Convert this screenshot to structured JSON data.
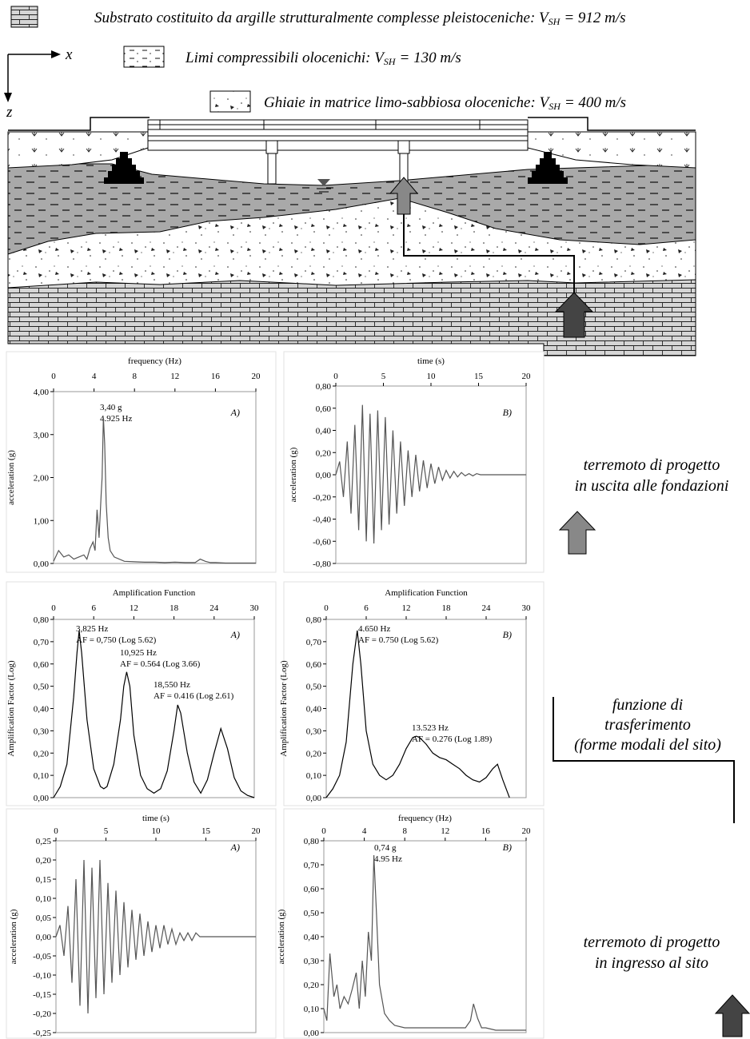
{
  "diagram": {
    "axes": {
      "x": "x",
      "z": "z"
    },
    "legend": [
      {
        "text": "Substrato costituito da argille strutturalmente complesse pleistoceniche:",
        "symbol": "V",
        "subscript": "SH",
        "value": "= 912 m/s"
      },
      {
        "text": "Limi compressibili olocenichi:",
        "symbol": "V",
        "subscript": "SH",
        "value": "= 130 m/s"
      },
      {
        "text": "Ghiaie in matrice limo-sabbiosa oloceniche:",
        "symbol": "V",
        "subscript": "SH",
        "value": "= 400 m/s"
      }
    ]
  },
  "captions": [
    {
      "lines": [
        "terremoto di progetto",
        "in uscita alle fondazioni"
      ]
    },
    {
      "lines": [
        "funzione di",
        "trasferimento",
        "(forme modali del sito)"
      ]
    },
    {
      "lines": [
        "terremoto di progetto",
        "in ingresso al sito"
      ]
    }
  ],
  "chart_data": [
    {
      "type": "line",
      "xlabel": "frequency (Hz)",
      "ylabel": "acceleration (g)",
      "panel": "A)",
      "color": "#555555",
      "annotations": [
        {
          "lines": [
            "3,40 g",
            "4.925 Hz"
          ]
        }
      ],
      "xlim": [
        0,
        20
      ],
      "xticks": [
        0,
        4,
        8,
        12,
        16,
        20
      ],
      "ylim": [
        0,
        4
      ],
      "yticks": [
        {
          "value": 0,
          "label": "0,00"
        },
        {
          "value": 1,
          "label": "1,00"
        },
        {
          "value": 2,
          "label": "2,00"
        },
        {
          "value": 3,
          "label": "3,00"
        },
        {
          "value": 4,
          "label": "4,00"
        }
      ],
      "x": [
        0,
        0.5,
        1,
        1.5,
        2,
        2.5,
        3,
        3.3,
        3.6,
        3.9,
        4.1,
        4.3,
        4.5,
        4.7,
        4.8,
        4.925,
        5.05,
        5.2,
        5.4,
        5.6,
        6,
        7,
        8,
        9,
        10,
        11,
        12,
        13,
        14,
        14.5,
        15,
        15.5,
        16,
        17,
        18,
        19,
        20
      ],
      "values": [
        0.05,
        0.3,
        0.15,
        0.2,
        0.1,
        0.15,
        0.2,
        0.1,
        0.35,
        0.5,
        0.3,
        1.25,
        0.6,
        1.6,
        2.0,
        3.4,
        2.8,
        1.4,
        0.6,
        0.3,
        0.15,
        0.05,
        0.04,
        0.03,
        0.03,
        0.02,
        0.03,
        0.02,
        0.02,
        0.1,
        0.05,
        0.02,
        0.02,
        0.01,
        0.01,
        0.01,
        0.01
      ]
    },
    {
      "type": "line",
      "xlabel": "time (s)",
      "ylabel": "acceleration (g)",
      "panel": "B)",
      "color": "#555555",
      "annotations": [],
      "xlim": [
        0,
        20
      ],
      "xticks": [
        0,
        5,
        10,
        15,
        20
      ],
      "ylim": [
        -0.8,
        0.8
      ],
      "yticks": [
        {
          "value": -0.8,
          "label": "-0,80"
        },
        {
          "value": -0.6,
          "label": "-0,60"
        },
        {
          "value": -0.4,
          "label": "-0,40"
        },
        {
          "value": -0.2,
          "label": "-0,20"
        },
        {
          "value": 0,
          "label": "0,00"
        },
        {
          "value": 0.2,
          "label": "0,20"
        },
        {
          "value": 0.4,
          "label": "0,40"
        },
        {
          "value": 0.6,
          "label": "0,60"
        },
        {
          "value": 0.8,
          "label": "0,80"
        }
      ],
      "x": [
        0,
        0.4,
        0.8,
        1.2,
        1.6,
        2,
        2.4,
        2.8,
        3.2,
        3.6,
        4,
        4.4,
        4.8,
        5.2,
        5.6,
        6,
        6.4,
        6.8,
        7.2,
        7.6,
        8,
        8.4,
        8.8,
        9.2,
        9.6,
        10,
        10.4,
        10.8,
        11.2,
        11.6,
        12,
        12.4,
        12.8,
        13.2,
        13.6,
        14,
        14.4,
        14.8,
        15.2,
        15.6,
        16,
        16.4,
        16.8,
        17.2,
        17.6,
        18,
        18.4,
        18.8,
        19.2,
        19.6,
        20
      ],
      "values": [
        0,
        0.12,
        -0.2,
        0.3,
        -0.35,
        0.45,
        -0.5,
        0.63,
        -0.6,
        0.55,
        -0.62,
        0.58,
        -0.5,
        0.52,
        -0.45,
        0.4,
        -0.35,
        0.3,
        -0.28,
        0.22,
        -0.2,
        0.18,
        -0.15,
        0.13,
        -0.12,
        0.1,
        -0.08,
        0.07,
        -0.05,
        0.04,
        -0.03,
        0.03,
        -0.02,
        0.02,
        -0.01,
        0.01,
        -0.01,
        0.01,
        0,
        0,
        0,
        0,
        0,
        0,
        0,
        0,
        0,
        0,
        0,
        0,
        0
      ]
    },
    {
      "type": "line",
      "xlabel": "Amplification Function",
      "ylabel": "Amplification Factor (Log)",
      "panel": "A)",
      "color": "#000000",
      "annotations": [
        {
          "lines": [
            "3,825 Hz",
            "AF = 0,750 (Log 5.62)"
          ]
        },
        {
          "lines": [
            "10,925 Hz",
            "AF = 0.564 (Log 3.66)"
          ]
        },
        {
          "lines": [
            "18,550 Hz",
            "AF = 0.416 (Log 2.61)"
          ]
        }
      ],
      "xlim": [
        0,
        30
      ],
      "xticks": [
        0,
        6,
        12,
        18,
        24,
        30
      ],
      "ylim": [
        0,
        0.8
      ],
      "yticks": [
        {
          "value": 0,
          "label": "0,00"
        },
        {
          "value": 0.1,
          "label": "0,10"
        },
        {
          "value": 0.2,
          "label": "0,20"
        },
        {
          "value": 0.3,
          "label": "0,30"
        },
        {
          "value": 0.4,
          "label": "0,40"
        },
        {
          "value": 0.5,
          "label": "0,50"
        },
        {
          "value": 0.6,
          "label": "0,60"
        },
        {
          "value": 0.7,
          "label": "0,70"
        },
        {
          "value": 0.8,
          "label": "0,80"
        }
      ],
      "x": [
        0,
        1,
        2,
        3,
        3.5,
        3.825,
        4.2,
        5,
        6,
        7,
        7.5,
        8,
        9,
        10,
        10.5,
        10.925,
        11.4,
        12,
        13,
        14,
        15,
        16,
        17,
        18,
        18.55,
        19,
        20,
        21,
        22,
        23,
        24,
        25,
        26,
        27,
        28,
        29,
        30
      ],
      "values": [
        0,
        0.05,
        0.15,
        0.45,
        0.65,
        0.75,
        0.65,
        0.35,
        0.13,
        0.05,
        0.04,
        0.05,
        0.15,
        0.35,
        0.5,
        0.564,
        0.5,
        0.28,
        0.1,
        0.04,
        0.02,
        0.04,
        0.12,
        0.3,
        0.416,
        0.38,
        0.2,
        0.07,
        0.02,
        0.08,
        0.2,
        0.31,
        0.22,
        0.09,
        0.03,
        0.01,
        0
      ]
    },
    {
      "type": "line",
      "xlabel": "Amplification Function",
      "ylabel": "Amplification Factor (Log)",
      "panel": "B)",
      "color": "#000000",
      "annotations": [
        {
          "lines": [
            "4.650 Hz",
            "AF = 0.750 (Log 5.62)"
          ]
        },
        {
          "lines": [
            "13.523 Hz",
            "AF = 0.276 (Log 1.89)"
          ]
        }
      ],
      "xlim": [
        0,
        30
      ],
      "xticks": [
        0,
        6,
        12,
        18,
        24,
        30
      ],
      "ylim": [
        0,
        0.8
      ],
      "yticks": [
        {
          "value": 0,
          "label": "0,00"
        },
        {
          "value": 0.1,
          "label": "0,10"
        },
        {
          "value": 0.2,
          "label": "0,20"
        },
        {
          "value": 0.3,
          "label": "0,30"
        },
        {
          "value": 0.4,
          "label": "0,40"
        },
        {
          "value": 0.5,
          "label": "0,50"
        },
        {
          "value": 0.6,
          "label": "0,60"
        },
        {
          "value": 0.7,
          "label": "0,70"
        },
        {
          "value": 0.8,
          "label": "0,80"
        }
      ],
      "x": [
        0,
        1,
        2,
        3,
        4,
        4.65,
        5.2,
        6,
        7,
        8,
        9,
        10,
        11,
        12,
        13,
        13.523,
        14,
        15,
        16,
        17,
        18,
        19,
        20,
        21,
        22,
        23,
        24,
        25,
        25.7,
        26.5,
        27.5
      ],
      "values": [
        0,
        0.04,
        0.1,
        0.25,
        0.6,
        0.75,
        0.6,
        0.3,
        0.15,
        0.1,
        0.08,
        0.1,
        0.15,
        0.22,
        0.27,
        0.276,
        0.27,
        0.24,
        0.2,
        0.18,
        0.17,
        0.15,
        0.13,
        0.1,
        0.08,
        0.07,
        0.09,
        0.13,
        0.15,
        0.08,
        0
      ]
    },
    {
      "type": "line",
      "xlabel": "time (s)",
      "ylabel": "acceleration (g)",
      "panel": "A)",
      "color": "#555555",
      "annotations": [],
      "xlim": [
        0,
        20
      ],
      "xticks": [
        0,
        5,
        10,
        15,
        20
      ],
      "ylim": [
        -0.25,
        0.25
      ],
      "yticks": [
        {
          "value": -0.25,
          "label": "-0,25"
        },
        {
          "value": -0.2,
          "label": "-0,20"
        },
        {
          "value": -0.15,
          "label": "-0,15"
        },
        {
          "value": -0.1,
          "label": "-0,10"
        },
        {
          "value": -0.05,
          "label": "-0,05"
        },
        {
          "value": 0,
          "label": "0,00"
        },
        {
          "value": 0.05,
          "label": "0,05"
        },
        {
          "value": 0.1,
          "label": "0,10"
        },
        {
          "value": 0.15,
          "label": "0,15"
        },
        {
          "value": 0.2,
          "label": "0,20"
        },
        {
          "value": 0.25,
          "label": "0,25"
        }
      ],
      "x": [
        0,
        0.4,
        0.8,
        1.2,
        1.6,
        2,
        2.4,
        2.8,
        3.2,
        3.6,
        4,
        4.4,
        4.8,
        5.2,
        5.6,
        6,
        6.4,
        6.8,
        7.2,
        7.6,
        8,
        8.4,
        8.8,
        9.2,
        9.6,
        10,
        10.4,
        10.8,
        11.2,
        11.6,
        12,
        12.4,
        12.8,
        13.2,
        13.6,
        14,
        14.4,
        14.8,
        15.2,
        15.6,
        16,
        16.4,
        16.8,
        17.2,
        17.6,
        18,
        18.4,
        18.8,
        19.2,
        19.6,
        20
      ],
      "values": [
        0,
        0.03,
        -0.05,
        0.08,
        -0.12,
        0.15,
        -0.18,
        0.2,
        -0.2,
        0.18,
        -0.16,
        0.2,
        -0.15,
        0.14,
        -0.12,
        0.12,
        -0.1,
        0.09,
        -0.08,
        0.07,
        -0.06,
        0.06,
        -0.05,
        0.04,
        -0.04,
        0.03,
        -0.03,
        0.03,
        -0.02,
        0.02,
        -0.02,
        0.01,
        -0.01,
        0.01,
        -0.01,
        0.01,
        0,
        0,
        0,
        0,
        0,
        0,
        0,
        0,
        0,
        0,
        0,
        0,
        0,
        0,
        0
      ]
    },
    {
      "type": "line",
      "xlabel": "frequency (Hz)",
      "ylabel": "acceleration (g)",
      "panel": "B)",
      "color": "#555555",
      "annotations": [
        {
          "lines": [
            "0,74 g",
            "4.95 Hz"
          ]
        }
      ],
      "xlim": [
        0,
        20
      ],
      "xticks": [
        0,
        4,
        8,
        12,
        16,
        20
      ],
      "ylim": [
        0,
        0.8
      ],
      "yticks": [
        {
          "value": 0,
          "label": "0,00"
        },
        {
          "value": 0.1,
          "label": "0,10"
        },
        {
          "value": 0.2,
          "label": "0,20"
        },
        {
          "value": 0.3,
          "label": "0,30"
        },
        {
          "value": 0.4,
          "label": "0,40"
        },
        {
          "value": 0.5,
          "label": "0,50"
        },
        {
          "value": 0.6,
          "label": "0,60"
        },
        {
          "value": 0.7,
          "label": "0,70"
        },
        {
          "value": 0.8,
          "label": "0,80"
        }
      ],
      "x": [
        0,
        0.3,
        0.6,
        1,
        1.3,
        1.6,
        2,
        2.4,
        2.8,
        3.2,
        3.5,
        3.8,
        4.1,
        4.4,
        4.7,
        4.95,
        5.2,
        5.5,
        6,
        6.5,
        7,
        8,
        9,
        10,
        11,
        12,
        13,
        14,
        14.5,
        14.8,
        15.2,
        15.6,
        16,
        17,
        18,
        19,
        20
      ],
      "values": [
        0.1,
        0.05,
        0.33,
        0.15,
        0.2,
        0.1,
        0.15,
        0.12,
        0.18,
        0.25,
        0.1,
        0.3,
        0.15,
        0.42,
        0.3,
        0.74,
        0.5,
        0.2,
        0.08,
        0.05,
        0.03,
        0.02,
        0.02,
        0.02,
        0.02,
        0.02,
        0.02,
        0.02,
        0.05,
        0.12,
        0.06,
        0.02,
        0.02,
        0.01,
        0.01,
        0.01,
        0.01
      ]
    }
  ]
}
